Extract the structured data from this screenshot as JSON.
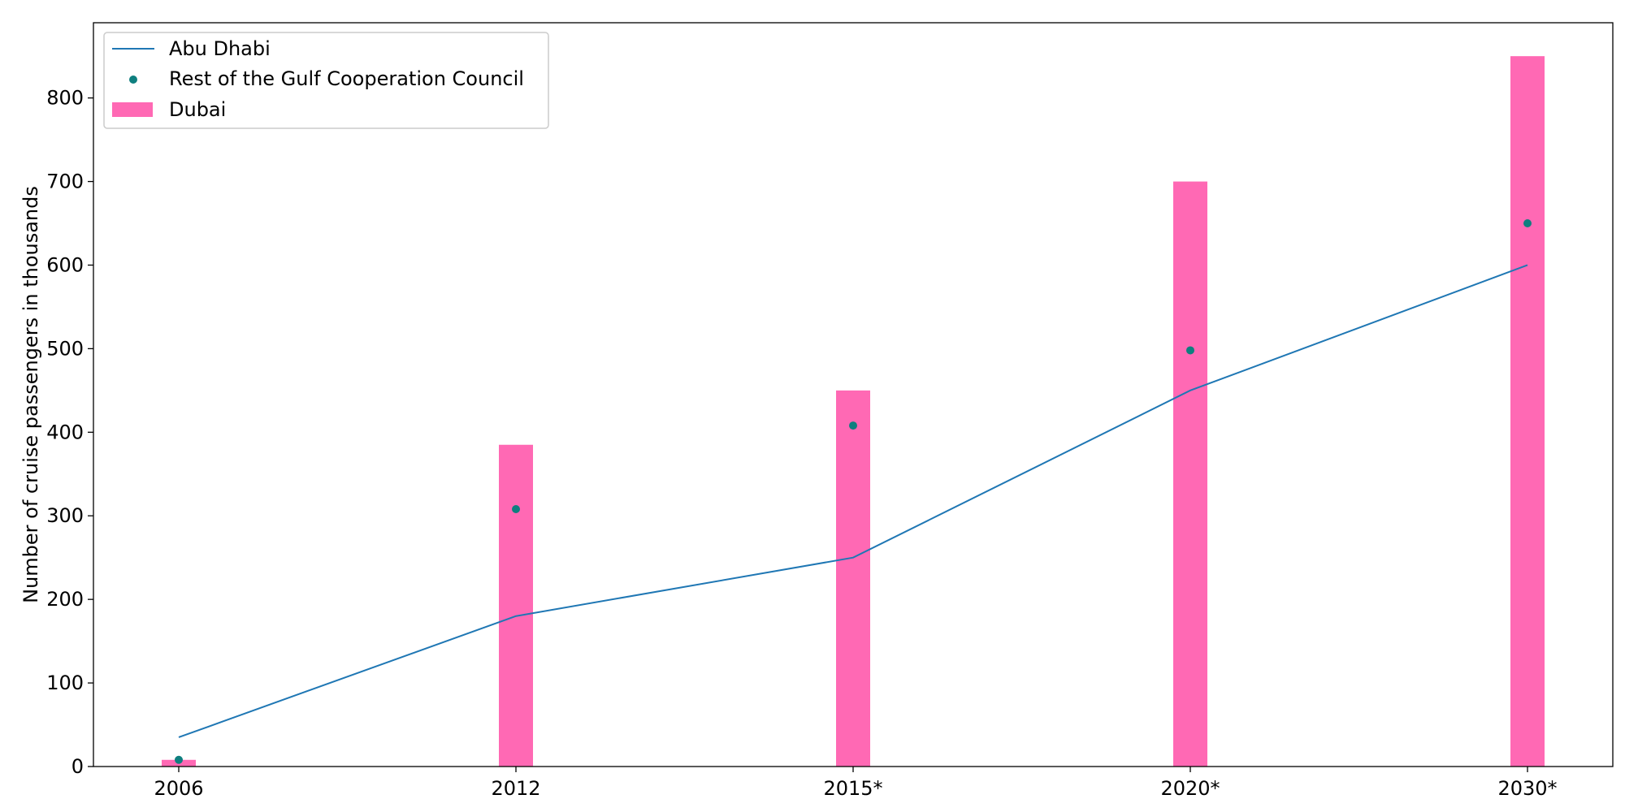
{
  "chart_data": {
    "type": "bar",
    "categories": [
      "2006",
      "2012",
      "2015*",
      "2020*",
      "2030*"
    ],
    "series": [
      {
        "name": "Abu Dhabi",
        "kind": "line",
        "color": "#1f77b4",
        "values": [
          35,
          180,
          250,
          450,
          600
        ]
      },
      {
        "name": "Rest of the Gulf Cooperation Council",
        "kind": "scatter",
        "color": "#0f7f7f",
        "values": [
          8,
          308,
          408,
          498,
          650
        ]
      },
      {
        "name": "Dubai",
        "kind": "bar",
        "color": "#ff69b4",
        "values": [
          8,
          385,
          450,
          700,
          850
        ]
      }
    ],
    "xlabel": "",
    "ylabel": "Number of cruise passengers in thousands",
    "ylim": [
      0,
      890
    ],
    "yticks": [
      0,
      100,
      200,
      300,
      400,
      500,
      600,
      700,
      800
    ],
    "grid": false,
    "legend_position": "top-left"
  }
}
